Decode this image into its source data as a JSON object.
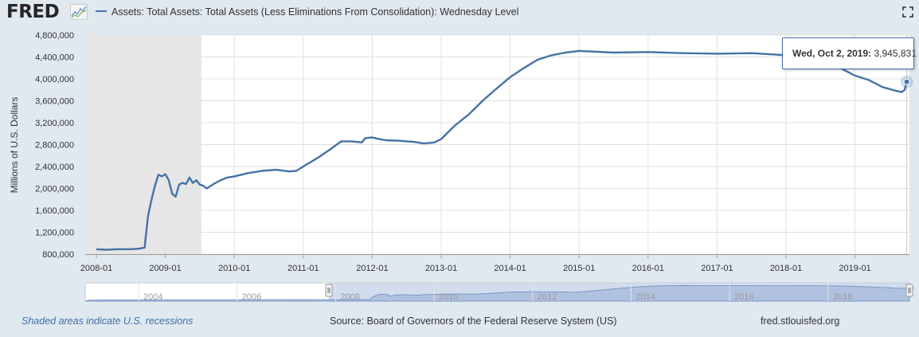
{
  "header": {
    "logo_text": "FRED",
    "logo_icon": "fred-chart-icon",
    "fullscreen_icon": "fullscreen-icon"
  },
  "tooltip": {
    "date": "Wed, Oct 2, 2019:",
    "value": "3,945,831"
  },
  "footer": {
    "recession_note": "Shaded areas indicate U.S. recessions",
    "source": "Source: Board of Governors of the Federal Reserve System (US)",
    "site": "fred.stlouisfed.org"
  },
  "colors": {
    "series": "#4572a7",
    "recession": "#e6e6e6",
    "navigator_fill": "#a4b9d9",
    "background": "#e1e9f0"
  },
  "navigator": {
    "tick_labels": [
      "2004",
      "2006",
      "2008",
      "2010",
      "2012",
      "2014",
      "2016",
      "2018"
    ]
  },
  "chart_data": {
    "type": "line",
    "title": "Assets: Total Assets: Total Assets (Less Eliminations From Consolidation): Wednesday Level",
    "xlabel": "",
    "ylabel": "Millions of U.S. Dollars",
    "x_tick_labels": [
      "2008-01",
      "2009-01",
      "2010-01",
      "2011-01",
      "2012-01",
      "2013-01",
      "2014-01",
      "2015-01",
      "2016-01",
      "2017-01",
      "2018-01",
      "2019-01"
    ],
    "y_tick_labels": [
      "800,000",
      "1,200,000",
      "1,600,000",
      "2,000,000",
      "2,400,000",
      "2,800,000",
      "3,200,000",
      "3,600,000",
      "4,000,000",
      "4,400,000",
      "4,800,000"
    ],
    "ylim": [
      800000,
      4800000
    ],
    "xlim": [
      2008.0,
      2019.8
    ],
    "recessions": [
      [
        2008.0,
        2009.5
      ]
    ],
    "series": [
      {
        "name": "Assets: Total Assets: Total Assets (Less Eliminations From Consolidation): Wednesday Level",
        "x": [
          2008.0,
          2008.15,
          2008.3,
          2008.5,
          2008.62,
          2008.7,
          2008.75,
          2008.8,
          2008.85,
          2008.9,
          2008.95,
          2009.0,
          2009.05,
          2009.1,
          2009.15,
          2009.2,
          2009.25,
          2009.3,
          2009.35,
          2009.4,
          2009.45,
          2009.5,
          2009.55,
          2009.6,
          2009.7,
          2009.8,
          2009.9,
          2010.0,
          2010.2,
          2010.4,
          2010.6,
          2010.8,
          2010.9,
          2011.0,
          2011.2,
          2011.4,
          2011.55,
          2011.7,
          2011.85,
          2011.9,
          2012.0,
          2012.1,
          2012.2,
          2012.4,
          2012.6,
          2012.75,
          2012.9,
          2013.0,
          2013.2,
          2013.4,
          2013.6,
          2013.8,
          2014.0,
          2014.2,
          2014.4,
          2014.6,
          2014.8,
          2015.0,
          2015.5,
          2016.0,
          2016.5,
          2017.0,
          2017.5,
          2017.9,
          2018.2,
          2018.5,
          2018.8,
          2019.0,
          2019.2,
          2019.4,
          2019.6,
          2019.68,
          2019.72,
          2019.75
        ],
        "values": [
          890000,
          880000,
          890000,
          890000,
          900000,
          920000,
          1500000,
          1800000,
          2050000,
          2250000,
          2220000,
          2260000,
          2150000,
          1900000,
          1850000,
          2070000,
          2100000,
          2080000,
          2200000,
          2100000,
          2150000,
          2070000,
          2050000,
          2000000,
          2080000,
          2150000,
          2200000,
          2220000,
          2280000,
          2320000,
          2340000,
          2310000,
          2320000,
          2400000,
          2550000,
          2720000,
          2860000,
          2860000,
          2840000,
          2920000,
          2930000,
          2900000,
          2880000,
          2870000,
          2850000,
          2820000,
          2840000,
          2900000,
          3150000,
          3350000,
          3600000,
          3820000,
          4030000,
          4200000,
          4350000,
          4430000,
          4480000,
          4510000,
          4480000,
          4490000,
          4470000,
          4460000,
          4470000,
          4440000,
          4410000,
          4320000,
          4190000,
          4060000,
          3980000,
          3850000,
          3780000,
          3760000,
          3800000,
          3945831
        ]
      }
    ],
    "grid": true,
    "legend_position": "top-left"
  }
}
